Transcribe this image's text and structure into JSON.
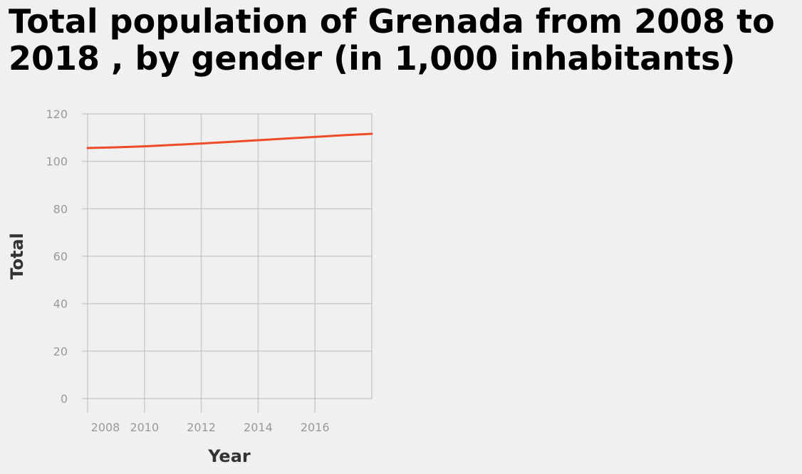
{
  "chart_data": {
    "type": "line",
    "title": "Total population of Grenada from 2008 to 2018 , by gender (in 1,000 inhabitants)",
    "xlabel": "Year",
    "ylabel": "Total",
    "x": [
      2008,
      2009,
      2010,
      2011,
      2012,
      2013,
      2014,
      2015,
      2016,
      2017,
      2018
    ],
    "series": [
      {
        "values": [
          105.6,
          105.9,
          106.3,
          106.9,
          107.5,
          108.2,
          108.9,
          109.6,
          110.3,
          111.0,
          111.6
        ],
        "color": "#ee4b2b"
      }
    ],
    "xticks": [
      2008,
      2010,
      2012,
      2014,
      2016
    ],
    "yticks": [
      0,
      20,
      40,
      60,
      80,
      100,
      120
    ],
    "xlim": [
      2008,
      2018
    ],
    "ylim": [
      0,
      120
    ],
    "grid": true,
    "colors": {
      "background": "#f0f0f0",
      "grid": "#cccccc",
      "tick_text": "#999999",
      "axis_title": "#333333",
      "title": "#000000"
    }
  }
}
